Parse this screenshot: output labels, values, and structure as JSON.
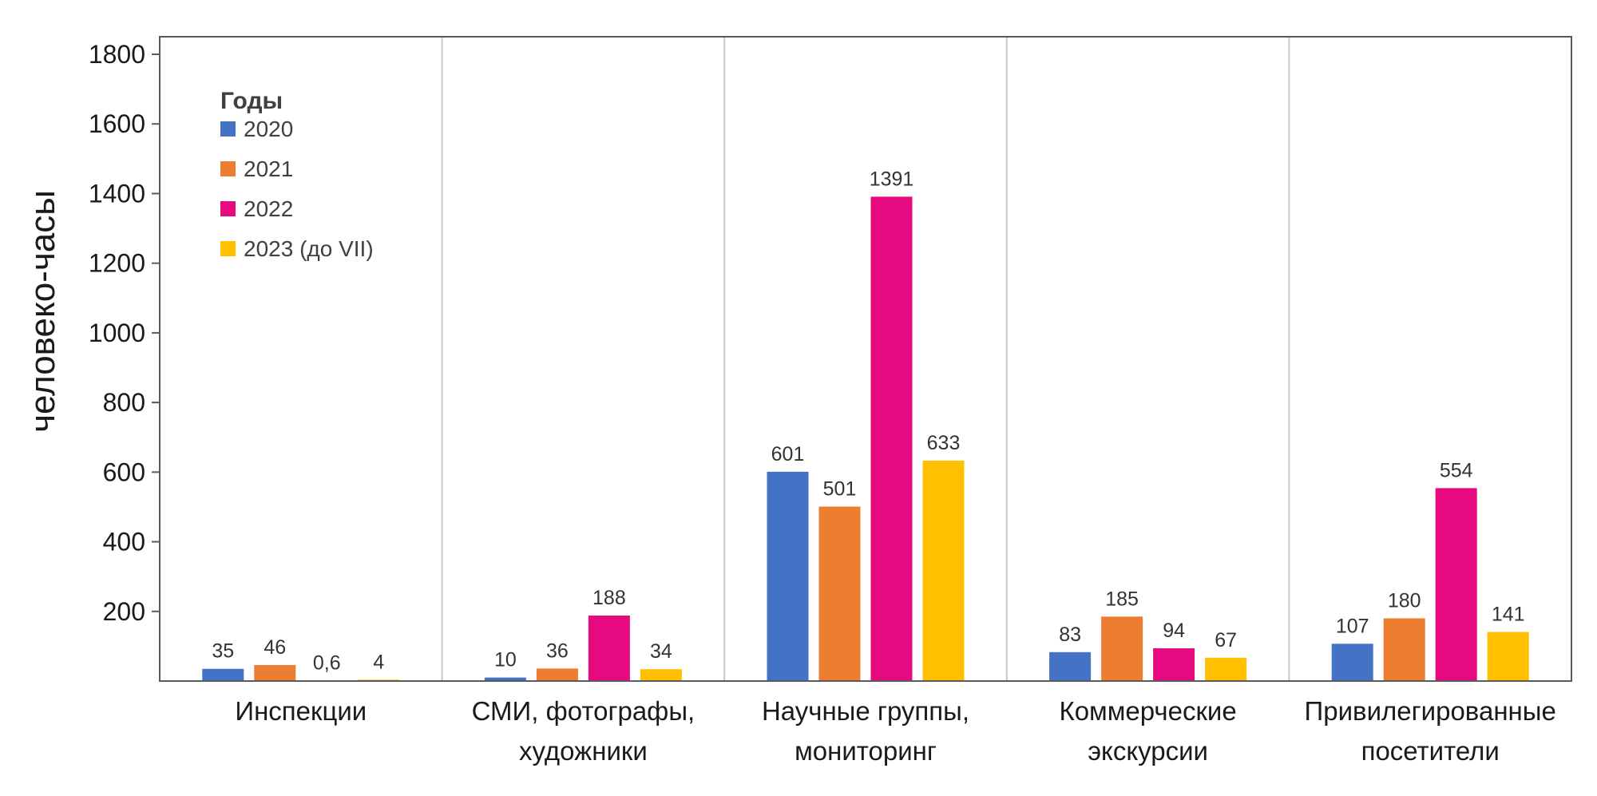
{
  "chart_data": {
    "type": "bar",
    "ylabel": "человеко-часы",
    "xlabel": "",
    "ylim": [
      0,
      1800
    ],
    "yticks": [
      "200",
      "400",
      "600",
      "800",
      "1000",
      "1200",
      "1400",
      "1600",
      "1800"
    ],
    "ytick_values": [
      200,
      400,
      600,
      800,
      1000,
      1200,
      1400,
      1600,
      1800
    ],
    "grid": "vertical separators between categories",
    "categories": [
      [
        "Инспекции"
      ],
      [
        "СМИ, фотографы,",
        "художники"
      ],
      [
        "Научные группы,",
        "мониторинг"
      ],
      [
        "Коммерческие",
        "экскурсии"
      ],
      [
        "Привилегированные",
        "посетители"
      ]
    ],
    "legend": {
      "title": "Годы",
      "placement": "top-left"
    },
    "series": [
      {
        "name": "2020",
        "color": "#4472C4",
        "values": [
          35,
          10,
          601,
          83,
          107
        ],
        "labels": [
          "35",
          "10",
          "601",
          "83",
          "107"
        ]
      },
      {
        "name": "2021",
        "color": "#ED7D31",
        "values": [
          46,
          36,
          501,
          185,
          180
        ],
        "labels": [
          "46",
          "36",
          "501",
          "185",
          "180"
        ]
      },
      {
        "name": "2022",
        "color": "#E6097F",
        "values": [
          0.6,
          188,
          1391,
          94,
          554
        ],
        "labels": [
          "0,6",
          "188",
          "1391",
          "94",
          "554"
        ]
      },
      {
        "name": "2023 (до VII)",
        "color": "#FFC000",
        "values": [
          4,
          34,
          633,
          67,
          141
        ],
        "labels": [
          "4",
          "34",
          "633",
          "67",
          "141"
        ]
      }
    ]
  }
}
